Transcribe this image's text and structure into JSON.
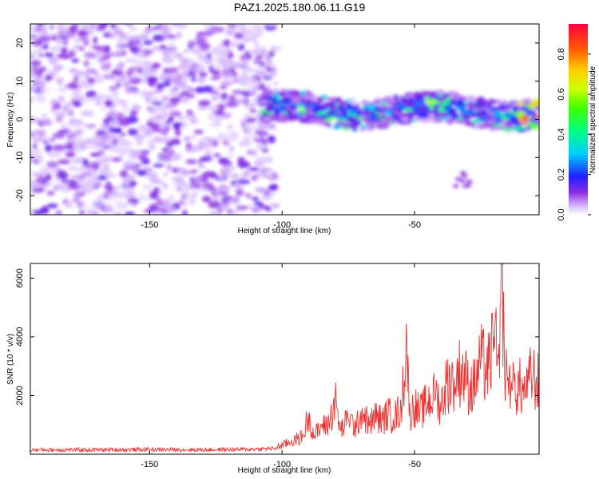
{
  "title": "PAZ1.2025.180.06.11.G19",
  "chart_data": [
    {
      "type": "heatmap",
      "xlabel": "Height of straight line (km)",
      "ylabel": "Frequency (Hz)",
      "xlim": [
        -195,
        -3
      ],
      "ylim": [
        -25,
        25
      ],
      "xticks": [
        -150,
        -100,
        -50
      ],
      "yticks": [
        -20,
        -10,
        0,
        10,
        20
      ],
      "colorbar": {
        "label": "Normalized spectral amplitude",
        "range": [
          0,
          0.95
        ],
        "ticks": [
          0.0,
          0.2,
          0.4,
          0.6,
          0.8
        ],
        "tick_labels": [
          "0.0",
          "0.2",
          "0.4",
          "0.6",
          "0.8"
        ]
      },
      "features": [
        {
          "desc": "diffuse noise",
          "x_range": [
            -195,
            -108
          ],
          "f_range": [
            -25,
            25
          ],
          "amplitude": 0.08
        },
        {
          "desc": "signal band",
          "x_range": [
            -108,
            -3
          ],
          "f_center_start": 2.5,
          "f_center_end": 2.0,
          "amplitude_max": 0.92
        },
        {
          "desc": "weak feature",
          "x": -32,
          "f": -16,
          "amplitude": 0.1
        }
      ],
      "grid": false
    },
    {
      "type": "line",
      "xlabel": "Height of straight line (km)",
      "ylabel": "SNR (10 * v/v)",
      "xlim": [
        -195,
        -3
      ],
      "ylim": [
        0,
        6500
      ],
      "xticks": [
        -150,
        -100,
        -50
      ],
      "yticks": [
        2000,
        4000,
        6000
      ],
      "series": [
        {
          "color": "#ee3333",
          "x": [
            -195,
            -170,
            -150,
            -130,
            -110,
            -103,
            -98,
            -95,
            -92,
            -90,
            -88,
            -85,
            -82,
            -80,
            -78,
            -75,
            -72,
            -70,
            -67,
            -65,
            -62,
            -60,
            -58,
            -55,
            -53,
            -52,
            -50,
            -48,
            -45,
            -42,
            -40,
            -38,
            -35,
            -32,
            -30,
            -28,
            -25,
            -22,
            -20,
            -18,
            -17,
            -16,
            -15,
            -13,
            -10,
            -8,
            -6,
            -3
          ],
          "values": [
            150,
            150,
            160,
            150,
            170,
            200,
            380,
            500,
            600,
            1400,
            650,
            900,
            1100,
            1850,
            800,
            1200,
            900,
            1450,
            1000,
            1300,
            1150,
            1400,
            1200,
            1600,
            3950,
            1300,
            1650,
            1400,
            1800,
            2000,
            1700,
            2400,
            2600,
            2900,
            2400,
            2200,
            3100,
            2900,
            4000,
            2600,
            6450,
            2700,
            2500,
            2200,
            2300,
            2000,
            2700,
            2400
          ]
        }
      ],
      "grid": false
    }
  ]
}
